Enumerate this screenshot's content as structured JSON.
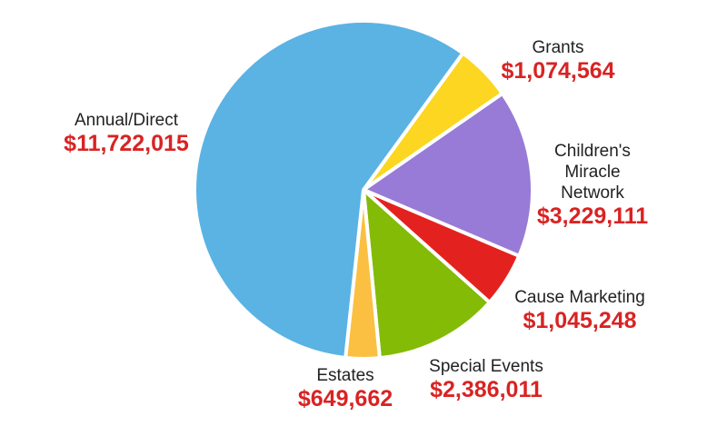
{
  "chart_data": {
    "type": "pie",
    "title": "",
    "start_angle_deg": 36,
    "slices": [
      {
        "name": "Grants",
        "name_lines": [
          "Grants"
        ],
        "value": 1074564,
        "display_value": "$1,074,564",
        "color": "#fcd620"
      },
      {
        "name": "Children's Miracle Network",
        "name_lines": [
          "Children's",
          "Miracle",
          "Network"
        ],
        "value": 3229111,
        "display_value": "$3,229,111",
        "color": "#977bd6"
      },
      {
        "name": "Cause Marketing",
        "name_lines": [
          "Cause Marketing"
        ],
        "value": 1045248,
        "display_value": "$1,045,248",
        "color": "#e3221f"
      },
      {
        "name": "Special Events",
        "name_lines": [
          "Special Events"
        ],
        "value": 2386011,
        "display_value": "$2,386,011",
        "color": "#84bb06"
      },
      {
        "name": "Estates",
        "name_lines": [
          "Estates"
        ],
        "value": 649662,
        "display_value": "$649,662",
        "color": "#fbc041"
      },
      {
        "name": "Annual/Direct",
        "name_lines": [
          "Annual/Direct"
        ],
        "value": 11722015,
        "display_value": "$11,722,015",
        "color": "#5ab3e3"
      }
    ]
  }
}
